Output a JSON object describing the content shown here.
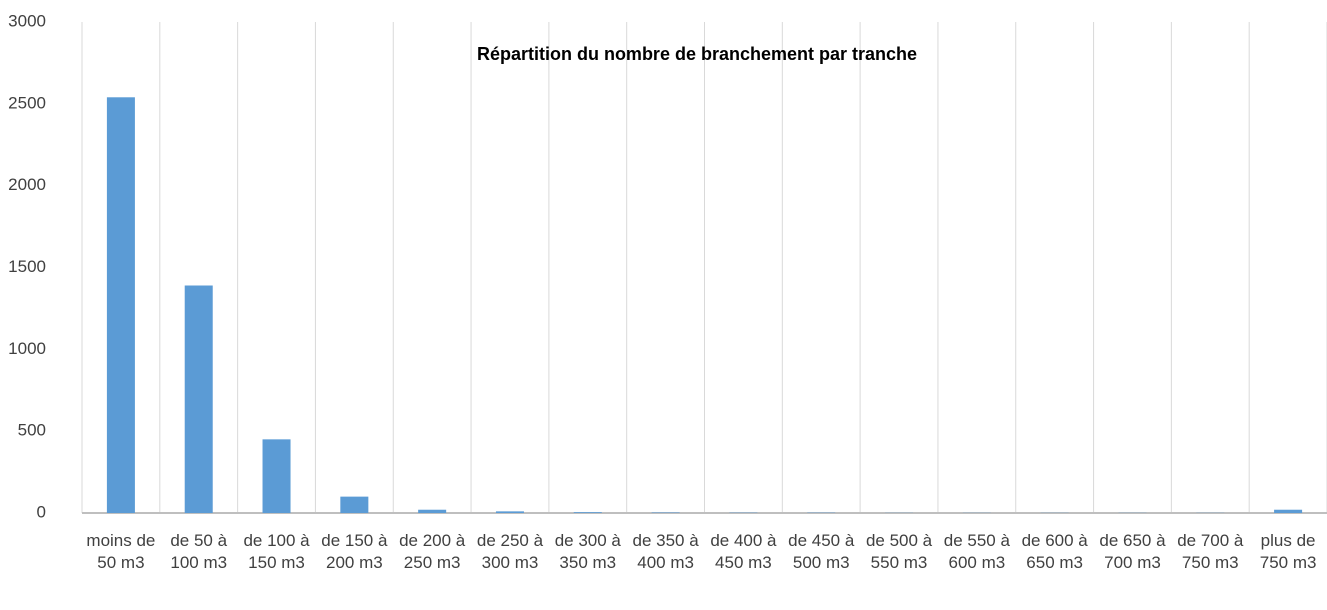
{
  "chart_data": {
    "type": "bar",
    "title": "Répartition du nombre de branchement par tranche",
    "categories": [
      "moins de 50 m3",
      "de 50 à 100 m3",
      "de 100 à 150 m3",
      "de 150 à 200 m3",
      "de 200 à 250 m3",
      "de 250 à 300 m3",
      "de 300 à 350 m3",
      "de 350 à 400 m3",
      "de 400 à 450 m3",
      "de 450 à 500 m3",
      "de 500 à 550 m3",
      "de 550 à 600 m3",
      "de 600 à 650 m3",
      "de 650 à 700 m3",
      "de 700 à 750 m3",
      "plus de 750 m3"
    ],
    "values": [
      2540,
      1390,
      450,
      100,
      20,
      10,
      5,
      3,
      2,
      2,
      1,
      1,
      1,
      1,
      1,
      20
    ],
    "color": "#5b9bd5",
    "ylim": [
      0,
      3000
    ],
    "yticks": [
      0,
      500,
      1000,
      1500,
      2000,
      2500,
      3000
    ],
    "grid": true
  }
}
